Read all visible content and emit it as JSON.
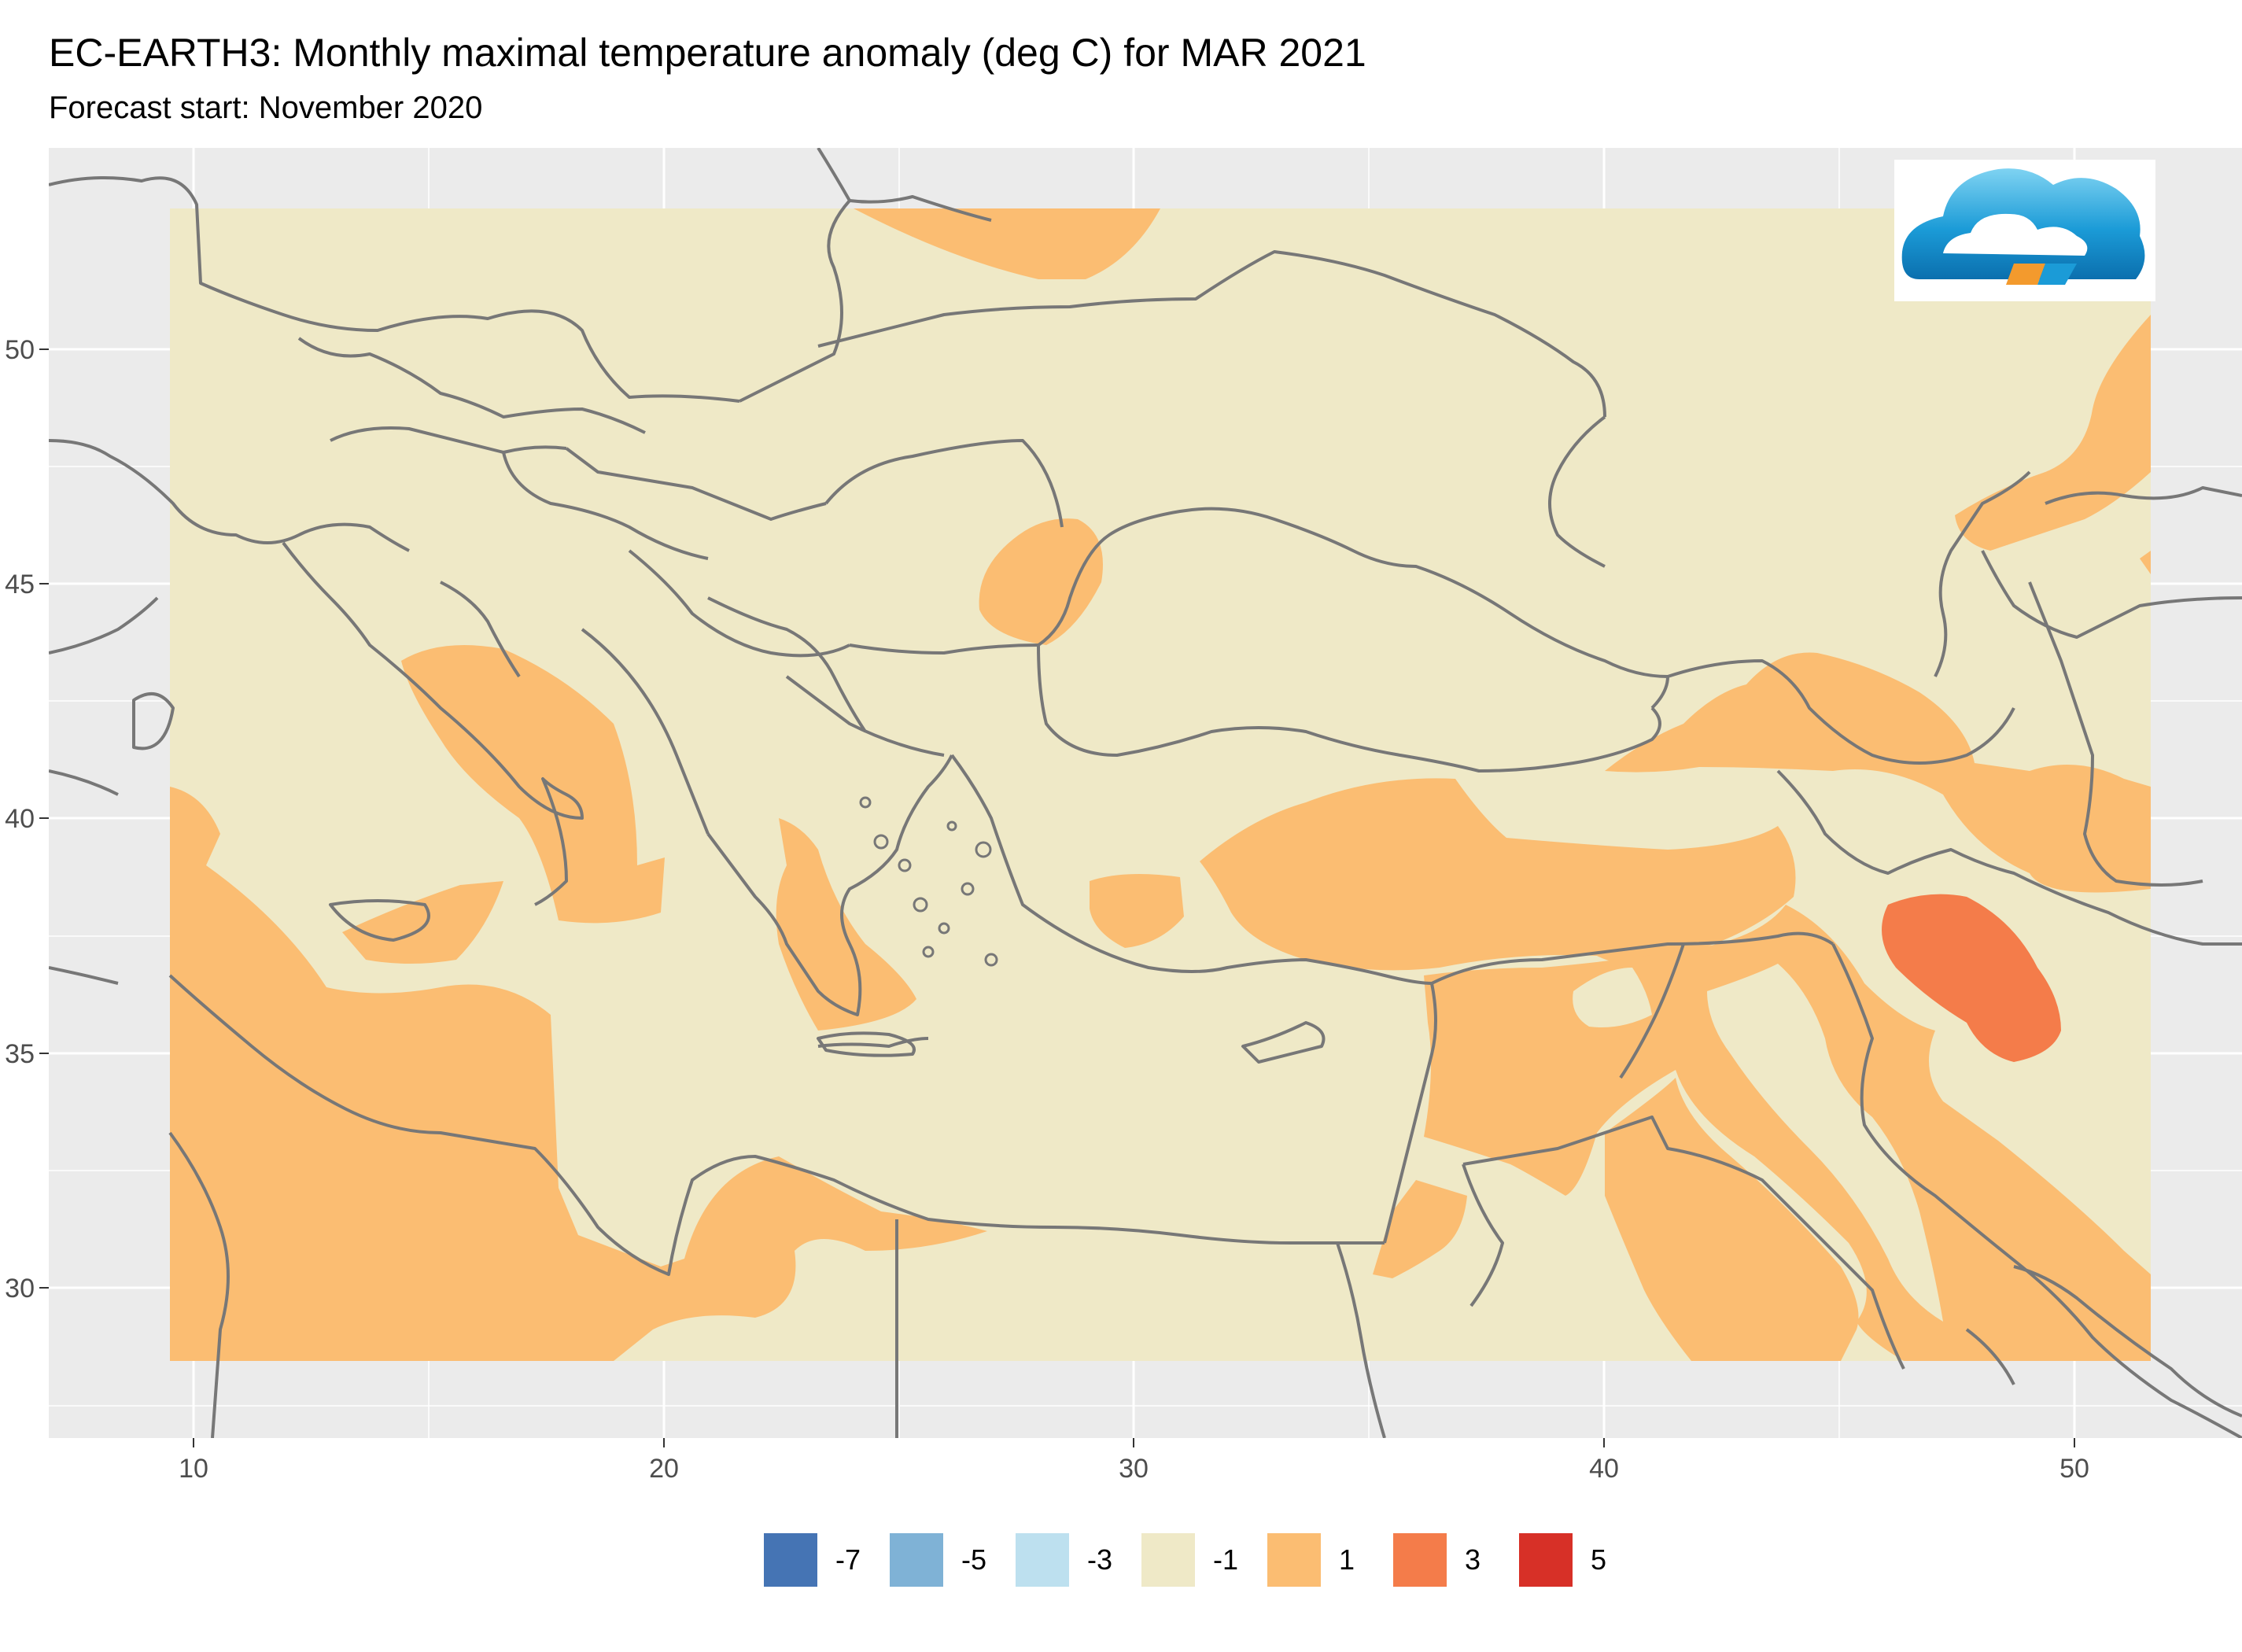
{
  "title": "EC-EARTH3: Monthly maximal temperature anomaly (deg C) for MAR 2021",
  "subtitle": "Forecast start: November 2020",
  "axes": {
    "x_ticks": [
      "10",
      "20",
      "30",
      "40",
      "50"
    ],
    "y_ticks": [
      "50",
      "45",
      "40",
      "35",
      "30"
    ]
  },
  "legend": [
    {
      "label": "-7",
      "color": "#4574b4"
    },
    {
      "label": "-5",
      "color": "#7fb2d6"
    },
    {
      "label": "-3",
      "color": "#bde0ef"
    },
    {
      "label": "-1",
      "color": "#efe9c7"
    },
    {
      "label": "1",
      "color": "#fbbd72"
    },
    {
      "label": "3",
      "color": "#f47c4a"
    },
    {
      "label": "5",
      "color": "#d73027"
    }
  ],
  "colors": {
    "panel_bg": "#ebebeb",
    "grid": "#ffffff",
    "neutral": "#efe9c7",
    "warm": "#fbbd72",
    "hot": "#f47c4a",
    "border_lines": "#777777"
  },
  "logo": "cloud-logo"
}
